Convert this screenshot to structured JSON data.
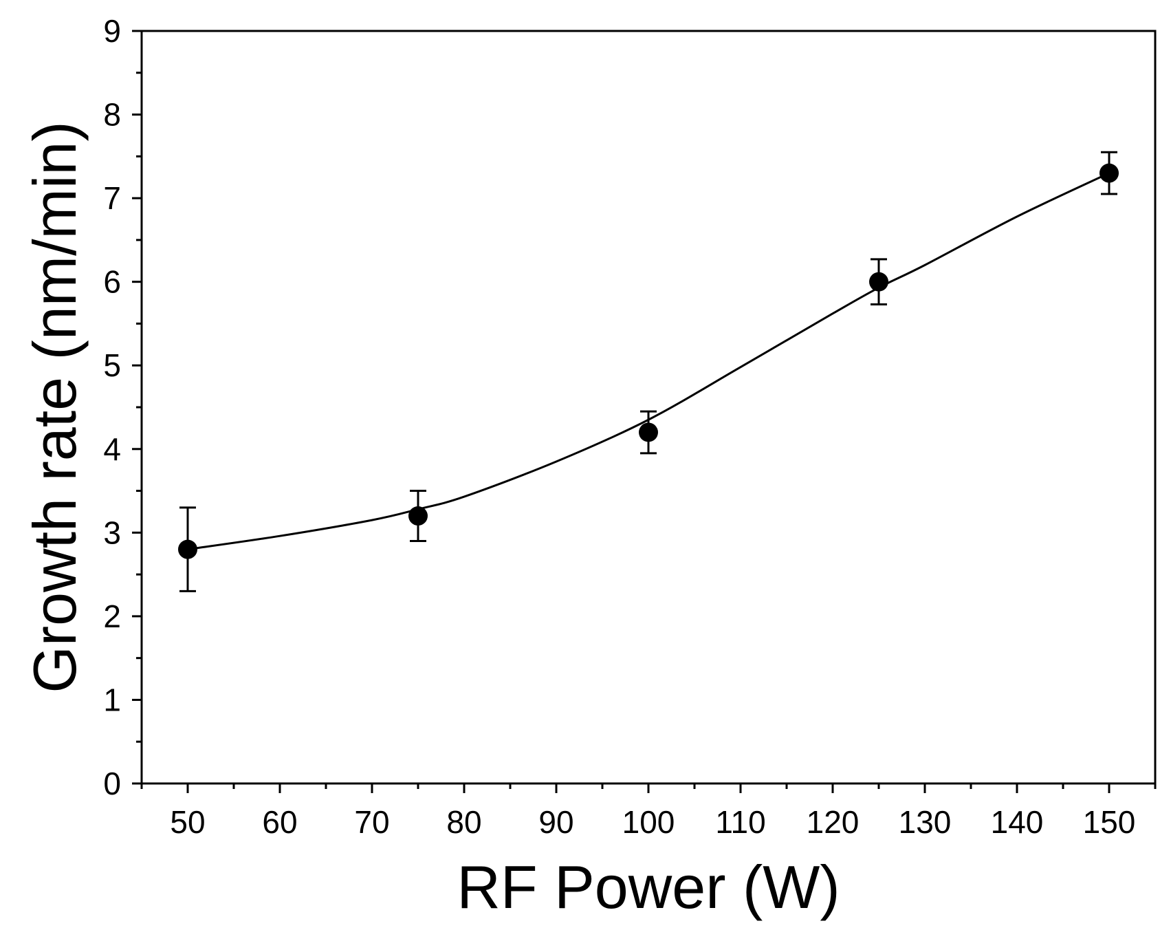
{
  "chart_data": {
    "type": "scatter",
    "title": "",
    "xlabel": "RF Power (W)",
    "ylabel": "Growth rate (nm/min)",
    "xlim": [
      45,
      155
    ],
    "ylim": [
      0,
      9
    ],
    "x_ticks": [
      50,
      60,
      70,
      80,
      90,
      100,
      110,
      120,
      130,
      140,
      150
    ],
    "y_ticks": [
      0,
      1,
      2,
      3,
      4,
      5,
      6,
      7,
      8,
      9
    ],
    "x_minor_ticks": [
      45,
      55,
      65,
      75,
      85,
      95,
      105,
      115,
      125,
      135,
      145,
      155
    ],
    "y_minor_ticks": [
      0.5,
      1.5,
      2.5,
      3.5,
      4.5,
      5.5,
      6.5,
      7.5,
      8.5
    ],
    "grid": false,
    "series": [
      {
        "name": "Growth rate",
        "marker": "filled-circle",
        "color": "#000000",
        "x": [
          50,
          75,
          100,
          125,
          150
        ],
        "y": [
          2.8,
          3.2,
          4.2,
          6.0,
          7.3
        ],
        "error": [
          0.5,
          0.3,
          0.25,
          0.27,
          0.25
        ]
      }
    ],
    "fit_line": {
      "name": "fit",
      "color": "#000000",
      "x": [
        50,
        60,
        70,
        75,
        80,
        90,
        100,
        110,
        120,
        125,
        130,
        140,
        150
      ],
      "y": [
        2.8,
        2.96,
        3.15,
        3.28,
        3.43,
        3.85,
        4.35,
        4.98,
        5.62,
        5.93,
        6.2,
        6.78,
        7.3
      ]
    }
  }
}
